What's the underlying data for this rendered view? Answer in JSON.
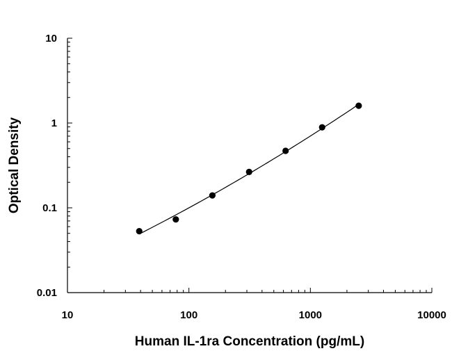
{
  "chart_data": {
    "type": "scatter",
    "title": "",
    "xlabel": "Human IL-1ra Concentration (pg/mL)",
    "ylabel": "Optical Density",
    "x_scale": "log",
    "y_scale": "log",
    "xlim": [
      10,
      10000
    ],
    "ylim": [
      0.01,
      10
    ],
    "x_ticks": [
      "10",
      "100",
      "1000",
      "10000"
    ],
    "y_ticks": [
      "0.01",
      "0.1",
      "1",
      "10"
    ],
    "grid": false,
    "legend": "none",
    "series": [
      {
        "points": [
          {
            "x": 39,
            "y": 0.053
          },
          {
            "x": 78,
            "y": 0.073
          },
          {
            "x": 156,
            "y": 0.14
          },
          {
            "x": 313,
            "y": 0.265
          },
          {
            "x": 625,
            "y": 0.47
          },
          {
            "x": 1250,
            "y": 0.89
          },
          {
            "x": 2500,
            "y": 1.6
          }
        ],
        "fit_curve": true
      }
    ],
    "colors": {
      "marker": "#000000",
      "line": "#000000",
      "axis": "#000000"
    }
  }
}
